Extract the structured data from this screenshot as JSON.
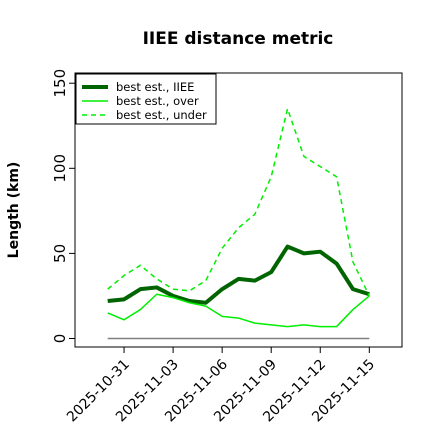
{
  "chart_data": {
    "type": "line",
    "title": "IIEE distance metric",
    "y_label": "Length (km)",
    "x": [
      "2025-10-30",
      "2025-10-31",
      "2025-11-01",
      "2025-11-02",
      "2025-11-03",
      "2025-11-04",
      "2025-11-05",
      "2025-11-06",
      "2025-11-07",
      "2025-11-08",
      "2025-11-09",
      "2025-11-10",
      "2025-11-11",
      "2025-11-12",
      "2025-11-13",
      "2025-11-14",
      "2025-11-15"
    ],
    "series": [
      {
        "name": "best est., IIEE",
        "color": "#006400",
        "style": "solid",
        "width": 4,
        "values": [
          22,
          23,
          29,
          30,
          25,
          22,
          21,
          29,
          35,
          34,
          39,
          54,
          50,
          51,
          44,
          29,
          26
        ]
      },
      {
        "name": "best est., over",
        "color": "#00ee00",
        "style": "solid",
        "width": 1.5,
        "values": [
          15,
          11,
          17,
          26,
          24,
          21,
          19,
          13,
          12,
          9,
          8,
          7,
          8,
          7,
          7,
          17,
          25
        ]
      },
      {
        "name": "best est., under",
        "color": "#00ee00",
        "style": "dashed",
        "width": 1.5,
        "values": [
          29,
          37,
          43,
          35,
          29,
          28,
          34,
          53,
          65,
          73,
          95,
          135,
          107,
          101,
          95,
          45,
          25
        ]
      }
    ],
    "reference_line": {
      "value": 0,
      "color": "#808080"
    },
    "xlim": [
      "2025-10-28",
      "2025-11-17"
    ],
    "xticks": [
      "2025-10-31",
      "2025-11-03",
      "2025-11-06",
      "2025-11-09",
      "2025-11-12",
      "2025-11-15"
    ],
    "ylim": [
      -5,
      156
    ],
    "yticks": [
      0,
      50,
      100,
      150
    ],
    "legend": "top-left"
  }
}
